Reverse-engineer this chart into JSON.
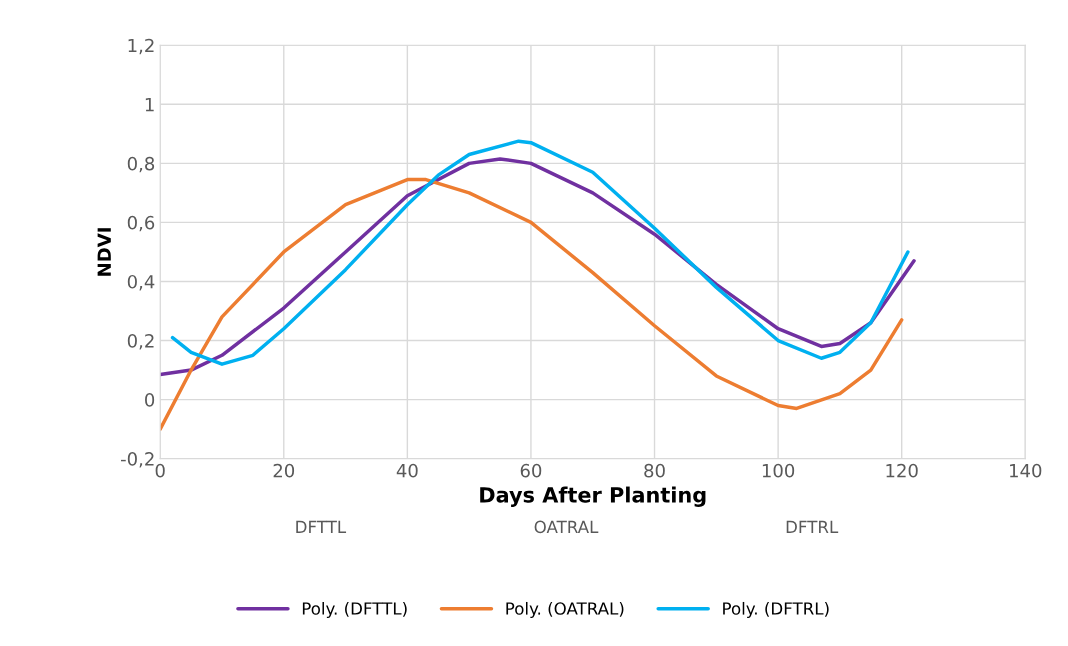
{
  "chart_data": {
    "type": "line",
    "xlabel": "Days After Planting",
    "ylabel": "NDVI",
    "xlim": [
      0,
      140
    ],
    "xticks": [
      0,
      20,
      40,
      60,
      80,
      100,
      120,
      140
    ],
    "ylim": [
      -0.2,
      1.2
    ],
    "yticks": [
      {
        "value": -0.2,
        "label": "-0,2"
      },
      0,
      {
        "value": 0.2,
        "label": "0,2"
      },
      {
        "value": 0.4,
        "label": "0,4"
      },
      {
        "value": 0.6,
        "label": "0,6"
      },
      {
        "value": 0.8,
        "label": "0,8"
      },
      1,
      {
        "value": 1.2,
        "label": "1,2"
      }
    ],
    "grid": true,
    "legend": "bottom",
    "marker": "none",
    "line_style": "solid",
    "annotations": [
      "DFTTL",
      "OATRAL",
      "DFTRL"
    ],
    "series": [
      {
        "name": "Poly. (DFTTL)",
        "color": "#7030a0",
        "x": [
          0,
          5,
          10,
          20,
          30,
          40,
          50,
          55,
          60,
          70,
          80,
          90,
          100,
          107,
          110,
          115,
          122
        ],
        "values": [
          0.085,
          0.1,
          0.15,
          0.31,
          0.5,
          0.69,
          0.8,
          0.815,
          0.8,
          0.7,
          0.56,
          0.39,
          0.24,
          0.18,
          0.19,
          0.26,
          0.47
        ]
      },
      {
        "name": "Poly. (OATRAL)",
        "color": "#ed7d31",
        "x": [
          0,
          5,
          10,
          20,
          30,
          40,
          43,
          50,
          60,
          70,
          80,
          90,
          100,
          103,
          110,
          115,
          120
        ],
        "values": [
          -0.1,
          0.1,
          0.28,
          0.5,
          0.66,
          0.745,
          0.745,
          0.7,
          0.6,
          0.43,
          0.25,
          0.08,
          -0.02,
          -0.03,
          0.02,
          0.1,
          0.27
        ]
      },
      {
        "name": "Poly. (DFTRL)",
        "color": "#00b0f0",
        "x": [
          2,
          5,
          10,
          15,
          20,
          30,
          40,
          45,
          50,
          58,
          60,
          70,
          80,
          90,
          100,
          107,
          110,
          115,
          121
        ],
        "values": [
          0.21,
          0.16,
          0.12,
          0.15,
          0.24,
          0.44,
          0.66,
          0.76,
          0.83,
          0.875,
          0.87,
          0.77,
          0.58,
          0.38,
          0.2,
          0.14,
          0.16,
          0.26,
          0.5
        ]
      }
    ]
  }
}
